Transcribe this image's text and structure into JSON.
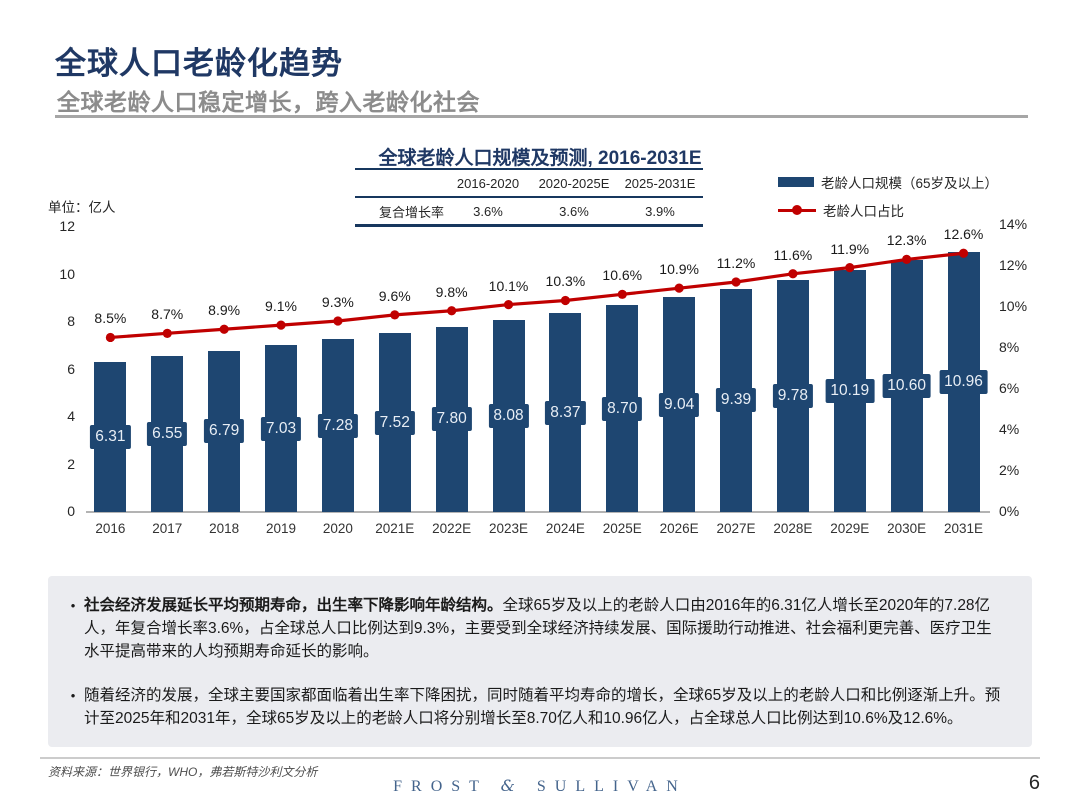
{
  "header": {
    "title": "全球人口老龄化趋势",
    "subtitle": "全球老龄人口稳定增长，跨入老龄化社会"
  },
  "chart_data": {
    "type": "bar",
    "title": "全球老龄人口规模及预测, 2016-2031E",
    "categories": [
      "2016",
      "2017",
      "2018",
      "2019",
      "2020",
      "2021E",
      "2022E",
      "2023E",
      "2024E",
      "2025E",
      "2026E",
      "2027E",
      "2028E",
      "2029E",
      "2030E",
      "2031E"
    ],
    "series": [
      {
        "name": "老龄人口规模（65岁及以上）",
        "type": "bar",
        "unit": "亿人",
        "values": [
          6.31,
          6.55,
          6.79,
          7.03,
          7.28,
          7.52,
          7.8,
          8.08,
          8.37,
          8.7,
          9.04,
          9.39,
          9.78,
          10.19,
          10.6,
          10.96
        ],
        "labels": [
          "6.31",
          "6.55",
          "6.79",
          "7.03",
          "7.28",
          "7.52",
          "7.80",
          "8.08",
          "8.37",
          "8.70",
          "9.04",
          "9.39",
          "9.78",
          "10.19",
          "10.60",
          "10.96"
        ]
      },
      {
        "name": "老龄人口占比",
        "type": "line",
        "unit": "%",
        "values": [
          8.5,
          8.7,
          8.9,
          9.1,
          9.3,
          9.6,
          9.8,
          10.1,
          10.3,
          10.6,
          10.9,
          11.2,
          11.6,
          11.9,
          12.3,
          12.6
        ],
        "labels": [
          "8.5%",
          "8.7%",
          "8.9%",
          "9.1%",
          "9.3%",
          "9.6%",
          "9.8%",
          "10.1%",
          "10.3%",
          "10.6%",
          "10.9%",
          "11.2%",
          "11.6%",
          "11.9%",
          "12.3%",
          "12.6%"
        ]
      }
    ],
    "left_axis": {
      "title": "单位：亿人",
      "ticks": [
        "12",
        "10",
        "8",
        "6",
        "4",
        "2",
        "0"
      ],
      "tick_values": [
        12,
        10,
        8,
        6,
        4,
        2,
        0
      ],
      "range": [
        0,
        12
      ]
    },
    "right_axis": {
      "ticks": [
        "14%",
        "12%",
        "10%",
        "8%",
        "6%",
        "4%",
        "2%",
        "0%"
      ],
      "tick_values": [
        14,
        12,
        10,
        8,
        6,
        4,
        2,
        0
      ],
      "range": [
        0,
        14
      ]
    },
    "grid": "off",
    "legend_position": "top-right",
    "colors": {
      "bar": "#1e4671",
      "line": "#c00000"
    }
  },
  "growth_table": {
    "headers": [
      "",
      "2016-2020",
      "2020-2025E",
      "2025-2031E"
    ],
    "row_label": "复合增长率",
    "values": [
      "3.6%",
      "3.6%",
      "3.9%"
    ]
  },
  "notes": {
    "bullets": [
      {
        "bold": "社会经济发展延长平均预期寿命，出生率下降影响年龄结构。",
        "text": "全球65岁及以上的老龄人口由2016年的6.31亿人增长至2020年的7.28亿人，年复合增长率3.6%，占全球总人口比例达到9.3%，主要受到全球经济持续发展、国际援助行动推进、社会福利更完善、医疗卫生水平提高带来的人均预期寿命延长的影响。"
      },
      {
        "bold": "",
        "text": "随着经济的发展，全球主要国家都面临着出生率下降困扰，同时随着平均寿命的增长，全球65岁及以上的老龄人口和比例逐渐上升。预计至2025年和2031年，全球65岁及以上的老龄人口将分别增长至8.70亿人和10.96亿人，占全球总人口比例达到10.6%及12.6%。"
      }
    ]
  },
  "footer": {
    "source": "资料来源：世界银行，WHO，弗若斯特沙利文分析",
    "logo_left": "FROST",
    "logo_amp": "&",
    "logo_right": "SULLIVAN",
    "page_number": "6"
  }
}
